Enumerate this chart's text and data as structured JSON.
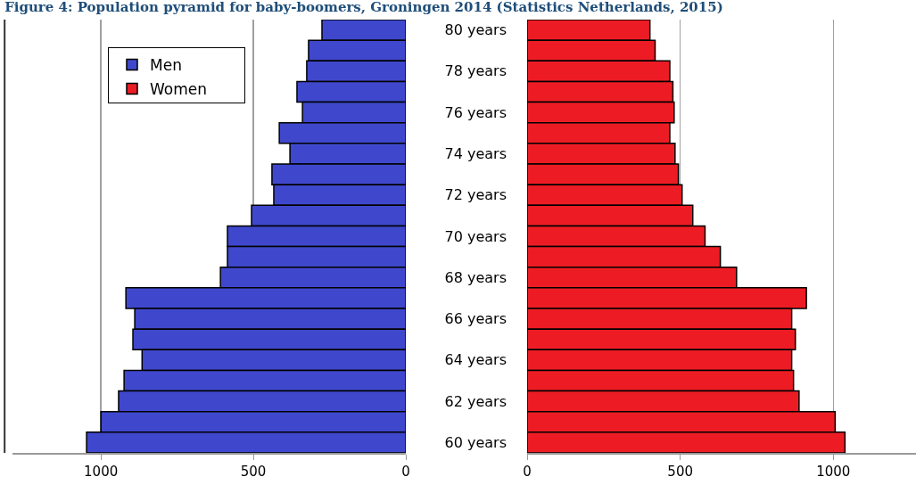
{
  "chart_data": [
    {
      "type": "bar",
      "orientation": "horizontal",
      "title": "Figure 4: Population pyramid for baby-boomers, Groningen 2014 (Statistics Netherlands, 2015)",
      "categories": [
        null,
        null,
        null,
        null,
        null,
        null,
        null,
        null,
        null,
        null,
        null,
        null,
        null,
        null,
        null,
        null,
        null,
        null,
        null,
        null,
        null
      ],
      "series": [
        {
          "name": "Men",
          "color": "#3f48cc",
          "values": [
            275,
            319,
            325,
            357,
            339,
            415,
            380,
            439,
            433,
            506,
            585,
            585,
            608,
            918,
            889,
            895,
            865,
            924,
            942,
            1000,
            1047
          ]
        }
      ],
      "xlim": [
        1290,
        0
      ],
      "xticks": [
        1000,
        500,
        0
      ],
      "grid": "x",
      "legend": "top left"
    },
    {
      "type": "bar",
      "orientation": "horizontal",
      "categories": [
        "80 years",
        null,
        "78 years",
        null,
        "76 years",
        null,
        "74 years",
        null,
        "72 years",
        null,
        "70 years",
        null,
        "68 years",
        null,
        "66 years",
        null,
        "64 years",
        null,
        "62 years",
        null,
        "60 years"
      ],
      "series": [
        {
          "name": "Women",
          "color": "#ed1c24",
          "values": [
            401,
            418,
            466,
            476,
            480,
            466,
            483,
            494,
            506,
            541,
            581,
            631,
            684,
            912,
            864,
            876,
            864,
            870,
            888,
            1006,
            1038
          ]
        }
      ],
      "xlim": [
        0,
        1270
      ],
      "xticks": [
        0,
        500,
        1000
      ],
      "grid": "x",
      "legend": "top left"
    }
  ]
}
